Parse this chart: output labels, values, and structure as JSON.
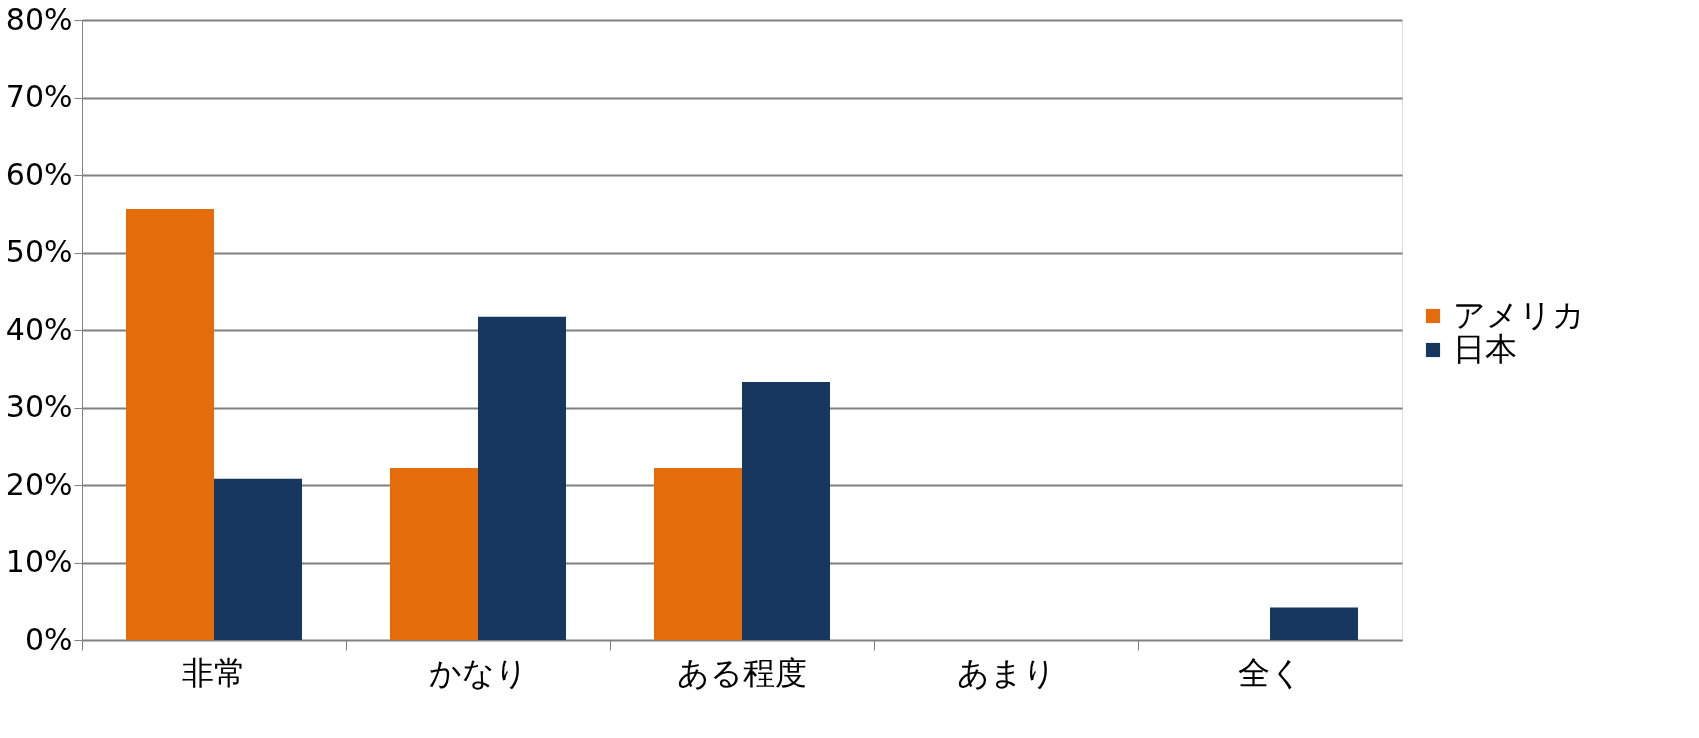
{
  "chart_data": {
    "type": "bar",
    "categories": [
      "非常",
      "かなり",
      "ある程度",
      "あまり",
      "全く"
    ],
    "series": [
      {
        "name": "アメリカ",
        "color": "#e46c0a",
        "values": [
          55.6,
          22.2,
          22.2,
          0,
          0
        ]
      },
      {
        "name": "日本",
        "color": "#17375e",
        "values": [
          20.8,
          41.7,
          33.3,
          0,
          4.2
        ]
      }
    ],
    "ylim": [
      0,
      80
    ],
    "yticks": [
      {
        "value": 0,
        "label": "0%"
      },
      {
        "value": 10,
        "label": "10%"
      },
      {
        "value": 20,
        "label": "20%"
      },
      {
        "value": 30,
        "label": "30%"
      },
      {
        "value": 40,
        "label": "40%"
      },
      {
        "value": 50,
        "label": "50%"
      },
      {
        "value": 60,
        "label": "60%"
      },
      {
        "value": 70,
        "label": "70%"
      },
      {
        "value": 80,
        "label": "80%"
      }
    ],
    "grid": "y",
    "legend": "right"
  }
}
